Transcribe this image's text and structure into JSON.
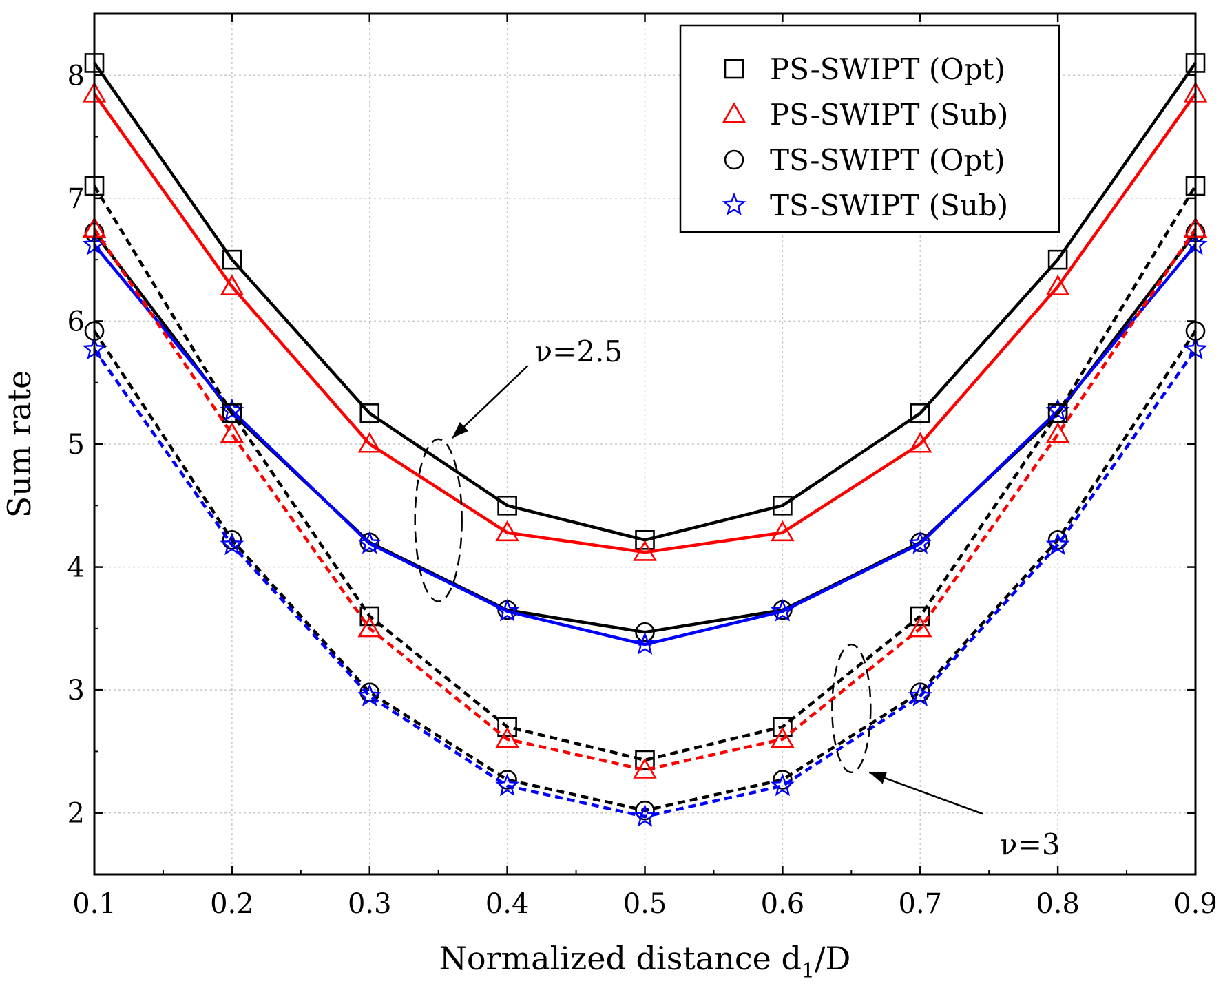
{
  "chart_data": {
    "type": "line",
    "title": "",
    "xlabel": "Normalized distance d",
    "xlabel_sub": "1",
    "xlabel_tail": "/D",
    "ylabel": "Sum rate",
    "xlim": [
      0.1,
      0.9
    ],
    "ylim": [
      1.5,
      8.5
    ],
    "xticks": [
      "0.1",
      "0.2",
      "0.3",
      "0.4",
      "0.5",
      "0.6",
      "0.7",
      "0.8",
      "0.9"
    ],
    "yticks": [
      "2",
      "3",
      "4",
      "5",
      "6",
      "7",
      "8"
    ],
    "grid": true,
    "legend_position": "top-right",
    "x": [
      0.1,
      0.2,
      0.3,
      0.4,
      0.5,
      0.6,
      0.7,
      0.8,
      0.9
    ],
    "legend": [
      {
        "label": "PS-SWIPT (Opt)",
        "marker": "square",
        "color": "#000000"
      },
      {
        "label": "PS-SWIPT (Sub)",
        "marker": "triangle",
        "color": "#ff0000"
      },
      {
        "label": "TS-SWIPT (Opt)",
        "marker": "circle",
        "color": "#000000"
      },
      {
        "label": "TS-SWIPT (Sub)",
        "marker": "star",
        "color": "#0000ff"
      }
    ],
    "series": [
      {
        "name": "PS-SWIPT (Opt), v=2.5",
        "marker": "square",
        "color": "#000000",
        "dash": false,
        "values": [
          8.1,
          6.5,
          5.25,
          4.5,
          4.22,
          4.5,
          5.25,
          6.5,
          8.1
        ]
      },
      {
        "name": "PS-SWIPT (Sub), v=2.5",
        "marker": "triangle",
        "color": "#ff0000",
        "dash": false,
        "values": [
          7.85,
          6.28,
          5.0,
          4.28,
          4.12,
          4.28,
          5.0,
          6.28,
          7.85
        ]
      },
      {
        "name": "TS-SWIPT (Opt), v=2.5",
        "marker": "circle",
        "color": "#000000",
        "dash": false,
        "values": [
          6.72,
          5.25,
          4.2,
          3.65,
          3.47,
          3.65,
          4.2,
          5.25,
          6.72
        ]
      },
      {
        "name": "TS-SWIPT (Sub), v=2.5",
        "marker": "star",
        "color": "#0000ff",
        "dash": false,
        "values": [
          6.62,
          5.27,
          4.19,
          3.64,
          3.37,
          3.64,
          4.19,
          5.27,
          6.62
        ]
      },
      {
        "name": "PS-SWIPT (Opt), v=3",
        "marker": "square",
        "color": "#000000",
        "dash": true,
        "values": [
          7.1,
          5.25,
          3.6,
          2.7,
          2.43,
          2.7,
          3.6,
          5.25,
          7.1
        ]
      },
      {
        "name": "PS-SWIPT (Sub), v=3",
        "marker": "triangle",
        "color": "#ff0000",
        "dash": true,
        "values": [
          6.75,
          5.08,
          3.5,
          2.6,
          2.35,
          2.6,
          3.5,
          5.08,
          6.75
        ]
      },
      {
        "name": "TS-SWIPT (Opt), v=3",
        "marker": "circle",
        "color": "#000000",
        "dash": true,
        "values": [
          5.92,
          4.22,
          2.98,
          2.27,
          2.02,
          2.27,
          2.98,
          4.22,
          5.92
        ]
      },
      {
        "name": "TS-SWIPT (Sub), v=3",
        "marker": "star",
        "color": "#0000ff",
        "dash": true,
        "values": [
          5.77,
          4.18,
          2.95,
          2.22,
          1.97,
          2.22,
          2.95,
          4.18,
          5.77
        ]
      }
    ],
    "annotations": [
      {
        "text": "ν=2.5",
        "ellipse_center": [
          0.35,
          4.38
        ],
        "ellipse_radii": [
          0.017,
          0.66
        ],
        "label_at": [
          0.42,
          5.75
        ],
        "arrow_to": [
          0.36,
          5.05
        ]
      },
      {
        "text": "ν=3",
        "ellipse_center": [
          0.65,
          2.85
        ],
        "ellipse_radii": [
          0.014,
          0.52
        ],
        "label_at": [
          0.758,
          1.74
        ],
        "arrow_to": [
          0.663,
          2.33
        ]
      }
    ]
  }
}
